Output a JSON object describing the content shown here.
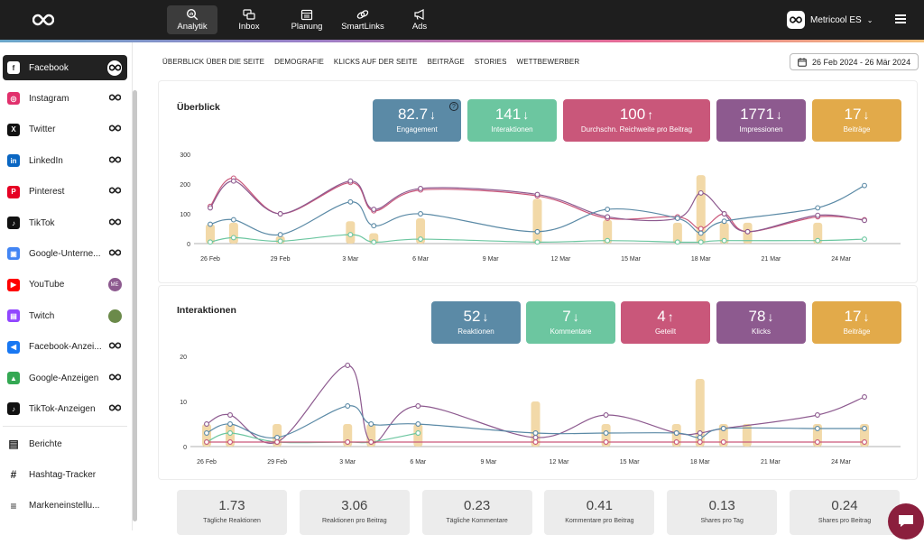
{
  "topnav": {
    "items": [
      {
        "label": "Analytik",
        "icon": "analytics-icon",
        "active": true
      },
      {
        "label": "Inbox",
        "icon": "inbox-icon"
      },
      {
        "label": "Planung",
        "icon": "calendar-icon"
      },
      {
        "label": "SmartLinks",
        "icon": "link-icon"
      },
      {
        "label": "Ads",
        "icon": "megaphone-icon"
      }
    ],
    "account": "Metricool ES"
  },
  "sidebar": {
    "items": [
      {
        "label": "Facebook",
        "color": "#1877f2"
      },
      {
        "label": "Instagram",
        "color": "#e1306c"
      },
      {
        "label": "Twitter",
        "color": "#111111"
      },
      {
        "label": "LinkedIn",
        "color": "#0a66c2"
      },
      {
        "label": "Pinterest",
        "color": "#e60023"
      },
      {
        "label": "TikTok",
        "color": "#111111"
      },
      {
        "label": "Google-Unterne...",
        "color": "#4285f4"
      },
      {
        "label": "YouTube",
        "color": "#ff0000",
        "badge": "ME"
      },
      {
        "label": "Twitch",
        "color": "#9146ff"
      },
      {
        "label": "Facebook-Anzei...",
        "color": "#1877f2"
      },
      {
        "label": "Google-Anzeigen",
        "color": "#34a853"
      },
      {
        "label": "TikTok-Anzeigen",
        "color": "#111111"
      }
    ],
    "tools": [
      {
        "label": "Berichte"
      },
      {
        "label": "Hashtag-Tracker"
      },
      {
        "label": "Markeneinstellu..."
      }
    ]
  },
  "subtabs": [
    "ÜBERBLICK ÜBER DIE SEITE",
    "DEMOGRAFIE",
    "KLICKS AUF DER SEITE",
    "BEITRÄGE",
    "STORIES",
    "WETTBEWERBER"
  ],
  "date_range": "26 Feb 2024 - 26 Mär 2024",
  "overview": {
    "title": "Überblick",
    "kpis": [
      {
        "value": "82.7",
        "dir": "down",
        "label": "Engagement",
        "color": "#5b8aa6"
      },
      {
        "value": "141",
        "dir": "down",
        "label": "Interaktionen",
        "color": "#6cc6a0"
      },
      {
        "value": "100",
        "dir": "up",
        "label": "Durchschn. Reichweite pro Beitrag",
        "color": "#c9577a"
      },
      {
        "value": "1771",
        "dir": "down",
        "label": "Impressionen",
        "color": "#8d5a8f"
      },
      {
        "value": "17",
        "dir": "down",
        "label": "Beiträge",
        "color": "#e2aa4a"
      }
    ]
  },
  "interactions": {
    "title": "Interaktionen",
    "kpis": [
      {
        "value": "52",
        "dir": "down",
        "label": "Reaktionen",
        "color": "#5b8aa6"
      },
      {
        "value": "7",
        "dir": "down",
        "label": "Kommentare",
        "color": "#6cc6a0"
      },
      {
        "value": "4",
        "dir": "up",
        "label": "Geteilt",
        "color": "#c9577a"
      },
      {
        "value": "78",
        "dir": "down",
        "label": "Klicks",
        "color": "#8d5a8f"
      },
      {
        "value": "17",
        "dir": "down",
        "label": "Beiträge",
        "color": "#e2aa4a"
      }
    ]
  },
  "bottom_kpis": [
    {
      "value": "1.73",
      "label": "Tägliche Reaktionen"
    },
    {
      "value": "3.06",
      "label": "Reaktionen pro Beitrag"
    },
    {
      "value": "0.23",
      "label": "Tägliche Kommentare"
    },
    {
      "value": "0.41",
      "label": "Kommentare pro Beitrag"
    },
    {
      "value": "0.13",
      "label": "Shares pro Tag"
    },
    {
      "value": "0.24",
      "label": "Shares pro Beitrag"
    }
  ],
  "chart_data": [
    {
      "type": "line",
      "x_ticks": [
        "26 Feb",
        "29 Feb",
        "3 Mar",
        "6 Mar",
        "9 Mar",
        "12 Mar",
        "15 Mar",
        "18 Mar",
        "21 Mar",
        "24 Mar"
      ],
      "ylim": [
        0,
        300
      ],
      "y_ticks": [
        0,
        100,
        200,
        300
      ],
      "bars": {
        "color": "#f2d9a8",
        "values": [
          [
            0,
            65
          ],
          [
            1,
            70
          ],
          [
            3,
            25
          ],
          [
            6,
            75
          ],
          [
            7,
            35
          ],
          [
            9,
            85
          ],
          [
            14,
            150
          ],
          [
            17,
            80
          ],
          [
            20,
            70
          ],
          [
            21,
            230
          ],
          [
            22,
            70
          ],
          [
            23,
            70
          ],
          [
            26,
            70
          ]
        ]
      },
      "series": [
        {
          "color": "#c9577a",
          "points": [
            [
              0,
              125
            ],
            [
              1,
              220
            ],
            [
              3,
              100
            ],
            [
              6,
              205
            ],
            [
              7,
              110
            ],
            [
              9,
              180
            ],
            [
              14,
              160
            ],
            [
              17,
              85
            ],
            [
              20,
              90
            ],
            [
              21,
              50
            ],
            [
              22,
              100
            ],
            [
              23,
              40
            ],
            [
              26,
              90
            ],
            [
              28,
              80
            ]
          ]
        },
        {
          "color": "#8d5a8f",
          "points": [
            [
              0,
              120
            ],
            [
              1,
              210
            ],
            [
              3,
              100
            ],
            [
              6,
              210
            ],
            [
              7,
              115
            ],
            [
              9,
              185
            ],
            [
              14,
              165
            ],
            [
              17,
              90
            ],
            [
              20,
              85
            ],
            [
              21,
              170
            ],
            [
              22,
              100
            ],
            [
              23,
              40
            ],
            [
              26,
              95
            ],
            [
              28,
              78
            ]
          ]
        },
        {
          "color": "#5b8aa6",
          "points": [
            [
              0,
              65
            ],
            [
              1,
              80
            ],
            [
              3,
              30
            ],
            [
              6,
              140
            ],
            [
              7,
              60
            ],
            [
              9,
              100
            ],
            [
              14,
              40
            ],
            [
              17,
              115
            ],
            [
              20,
              85
            ],
            [
              21,
              35
            ],
            [
              22,
              75
            ],
            [
              26,
              120
            ],
            [
              28,
              195
            ]
          ]
        },
        {
          "color": "#6cc6a0",
          "points": [
            [
              0,
              5
            ],
            [
              1,
              20
            ],
            [
              3,
              8
            ],
            [
              6,
              30
            ],
            [
              7,
              5
            ],
            [
              9,
              15
            ],
            [
              14,
              5
            ],
            [
              17,
              10
            ],
            [
              20,
              5
            ],
            [
              21,
              5
            ],
            [
              22,
              10
            ],
            [
              26,
              10
            ],
            [
              28,
              15
            ]
          ]
        }
      ]
    },
    {
      "type": "line",
      "x_ticks": [
        "26 Feb",
        "29 Feb",
        "3 Mar",
        "6 Mar",
        "9 Mar",
        "12 Mar",
        "15 Mar",
        "18 Mar",
        "21 Mar",
        "24 Mar"
      ],
      "ylim": [
        0,
        20
      ],
      "y_ticks": [
        0,
        10,
        20
      ],
      "bars": {
        "color": "#f2d9a8",
        "values": [
          [
            0,
            5
          ],
          [
            1,
            5
          ],
          [
            3,
            5
          ],
          [
            6,
            5
          ],
          [
            7,
            5
          ],
          [
            9,
            5
          ],
          [
            14,
            10
          ],
          [
            17,
            5
          ],
          [
            20,
            5
          ],
          [
            21,
            15
          ],
          [
            22,
            5
          ],
          [
            23,
            5
          ],
          [
            26,
            5
          ],
          [
            28,
            5
          ]
        ]
      },
      "series": [
        {
          "color": "#8d5a8f",
          "points": [
            [
              0,
              5
            ],
            [
              1,
              7
            ],
            [
              3,
              1
            ],
            [
              6,
              18
            ],
            [
              7,
              1
            ],
            [
              9,
              9
            ],
            [
              14,
              2
            ],
            [
              17,
              7
            ],
            [
              20,
              3
            ],
            [
              21,
              3
            ],
            [
              22,
              4
            ],
            [
              26,
              7
            ],
            [
              28,
              11
            ]
          ]
        },
        {
          "color": "#5b8aa6",
          "points": [
            [
              0,
              3
            ],
            [
              1,
              5
            ],
            [
              3,
              2
            ],
            [
              6,
              9
            ],
            [
              7,
              5
            ],
            [
              9,
              5
            ],
            [
              14,
              3
            ],
            [
              17,
              3
            ],
            [
              20,
              3
            ],
            [
              21,
              2
            ],
            [
              22,
              4
            ],
            [
              26,
              4
            ],
            [
              28,
              4
            ]
          ]
        },
        {
          "color": "#6cc6a0",
          "points": [
            [
              0,
              1
            ],
            [
              1,
              3
            ],
            [
              3,
              1
            ],
            [
              6,
              1
            ],
            [
              7,
              1
            ],
            [
              9,
              3
            ]
          ]
        },
        {
          "color": "#c9577a",
          "points": [
            [
              0,
              1
            ],
            [
              1,
              1
            ],
            [
              3,
              1
            ],
            [
              6,
              1
            ],
            [
              7,
              1
            ],
            [
              14,
              1
            ],
            [
              17,
              1
            ],
            [
              20,
              1
            ],
            [
              21,
              1
            ],
            [
              22,
              1
            ],
            [
              26,
              1
            ],
            [
              28,
              1
            ]
          ]
        }
      ]
    }
  ]
}
